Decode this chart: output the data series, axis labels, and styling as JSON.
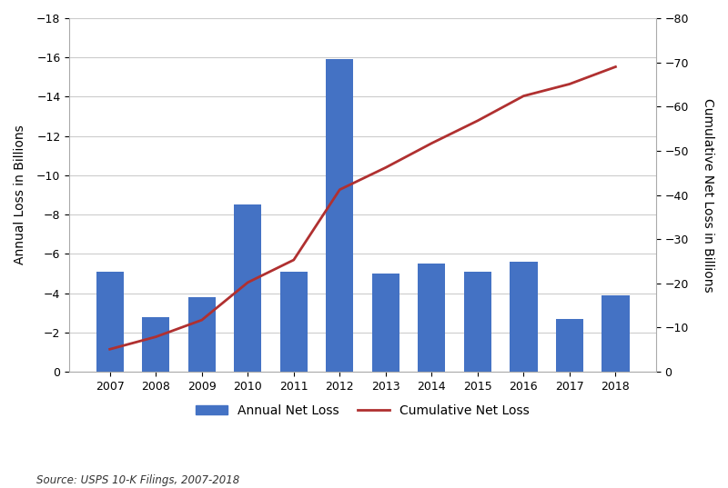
{
  "years": [
    2007,
    2008,
    2009,
    2010,
    2011,
    2012,
    2013,
    2014,
    2015,
    2016,
    2017,
    2018
  ],
  "annual_losses": [
    -5.1,
    -2.8,
    -3.8,
    -8.5,
    -5.1,
    -15.9,
    -5.0,
    -5.5,
    -5.1,
    -5.6,
    -2.7,
    -3.9
  ],
  "cumulative_losses": [
    -5.1,
    -7.9,
    -11.7,
    -20.2,
    -25.3,
    -41.2,
    -46.2,
    -51.7,
    -56.8,
    -62.4,
    -65.1,
    -69.0
  ],
  "bar_color": "#4472C4",
  "line_color": "#B03030",
  "ylabel_left": "Annual Loss in Billions",
  "ylabel_right": "Cumulative Net Loss in Billions",
  "ylim_left": [
    0,
    -18
  ],
  "ylim_right": [
    0,
    -80
  ],
  "yticks_left": [
    0,
    -2,
    -4,
    -6,
    -8,
    -10,
    -12,
    -14,
    -16,
    -18
  ],
  "yticks_right": [
    0,
    -10,
    -20,
    -30,
    -40,
    -50,
    -60,
    -70,
    -80
  ],
  "legend_bar": "Annual Net Loss",
  "legend_line": "Cumulative Net Loss",
  "source_text": "Source: USPS 10-K Filings, 2007-2018",
  "background_color": "#FFFFFF",
  "grid_color": "#CCCCCC"
}
